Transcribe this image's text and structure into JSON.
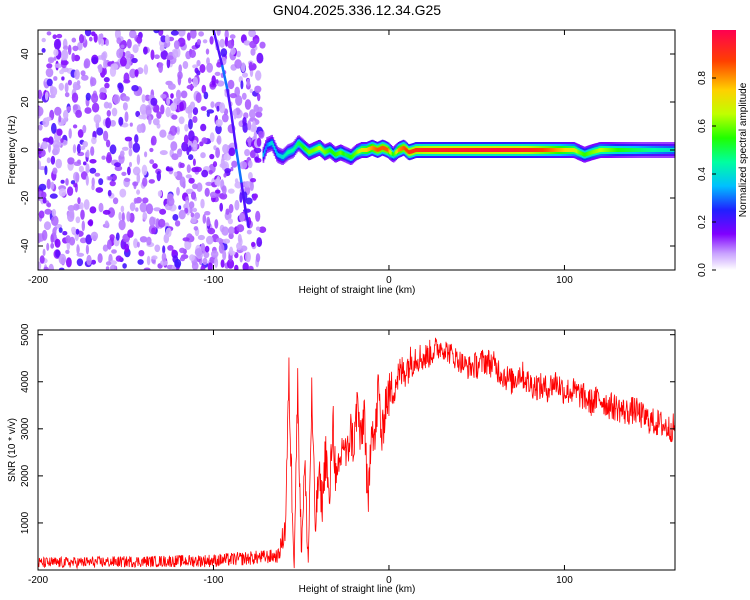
{
  "figure_title": "GN04.2025.336.12.34.G25",
  "chart_data": [
    {
      "type": "heatmap",
      "title": "GN04.2025.336.12.34.G25",
      "xlabel": "Height of straight line (km)",
      "ylabel": "Frequency (Hz)",
      "xlim": [
        -200,
        163
      ],
      "ylim": [
        -50,
        50
      ],
      "xticks": [
        -200,
        -100,
        0,
        100
      ],
      "yticks": [
        -40,
        -20,
        0,
        20,
        40
      ],
      "noise_region_x": [
        -200,
        -72
      ],
      "signal_trace": {
        "x": [
          -72,
          -70,
          -67,
          -64,
          -61,
          -58,
          -55,
          -52,
          -49,
          -46,
          -43,
          -40,
          -37,
          -34,
          -31,
          -28,
          -25,
          -22,
          -19,
          -16,
          -13,
          -10,
          -7,
          -4,
          -1,
          2,
          5,
          8,
          11,
          15,
          20,
          30,
          40,
          50,
          60,
          70,
          80,
          90,
          100,
          105,
          108,
          111,
          115,
          120,
          130,
          140,
          150,
          163
        ],
        "frequency": [
          -2,
          2,
          3,
          -2,
          -3,
          -1,
          0,
          3,
          1,
          -1,
          0,
          1,
          -1,
          0,
          -2,
          -1,
          -2,
          -3,
          -1,
          0,
          0,
          1,
          0,
          1,
          0,
          -2,
          0,
          1,
          -1,
          0,
          0,
          0,
          0,
          0,
          0,
          0,
          0,
          0,
          0,
          0,
          -1,
          -2,
          -1,
          0,
          0,
          0,
          0,
          0
        ],
        "amplitude": [
          0.35,
          0.3,
          0.4,
          0.35,
          0.4,
          0.45,
          0.45,
          0.5,
          0.55,
          0.6,
          0.6,
          0.65,
          0.6,
          0.55,
          0.55,
          0.6,
          0.5,
          0.55,
          0.6,
          0.7,
          0.75,
          0.8,
          0.85,
          0.85,
          0.85,
          0.5,
          0.8,
          0.85,
          0.9,
          0.9,
          0.92,
          0.93,
          0.94,
          0.95,
          0.96,
          0.95,
          0.92,
          0.85,
          0.75,
          0.7,
          0.6,
          0.55,
          0.6,
          0.65,
          0.55,
          0.5,
          0.45,
          0.4
        ]
      },
      "streak": {
        "x": [
          -100,
          -95,
          -92,
          -90,
          -87,
          -84,
          -82,
          -80
        ],
        "frequency": [
          50,
          35,
          25,
          16,
          0,
          -14,
          -24,
          -32
        ]
      },
      "colorbar": {
        "label": "Normalized spectral amplitude",
        "range": [
          0,
          1
        ],
        "ticks": [
          "0.0",
          "0.2",
          "0.4",
          "0.6",
          "0.8"
        ],
        "tick_values": [
          0,
          0.2,
          0.4,
          0.6,
          0.8
        ],
        "colormap": "rainbow (purple to red)"
      }
    },
    {
      "type": "line",
      "title": "",
      "xlabel": "Height of straight line (km)",
      "ylabel": "SNR (10 * v/v)",
      "xlim": [
        -200,
        163
      ],
      "ylim": [
        0,
        5100
      ],
      "xticks": [
        -200,
        -100,
        0,
        100
      ],
      "yticks": [
        1000,
        2000,
        3000,
        4000,
        5000
      ],
      "series": [
        {
          "name": "SNR",
          "color": "#ff0000",
          "x": [
            -200,
            -180,
            -160,
            -140,
            -120,
            -100,
            -80,
            -70,
            -63,
            -59,
            -57,
            -56,
            -54,
            -52,
            -50,
            -48,
            -46,
            -44,
            -42,
            -40,
            -38,
            -36,
            -34,
            -32,
            -30,
            -28,
            -26,
            -24,
            -22,
            -20,
            -18,
            -16,
            -14,
            -12,
            -10,
            -8,
            -6,
            -4,
            -2,
            0,
            5,
            10,
            15,
            20,
            25,
            30,
            35,
            40,
            45,
            50,
            55,
            60,
            65,
            70,
            75,
            80,
            85,
            90,
            95,
            100,
            105,
            110,
            115,
            120,
            125,
            130,
            135,
            140,
            145,
            150,
            155,
            160,
            163
          ],
          "values": [
            150,
            160,
            170,
            180,
            190,
            200,
            250,
            280,
            300,
            900,
            4150,
            2500,
            300,
            3900,
            500,
            2200,
            150,
            3700,
            900,
            2000,
            1400,
            2600,
            1300,
            3300,
            1700,
            2200,
            2800,
            2300,
            3000,
            2600,
            3600,
            2600,
            3500,
            1100,
            3300,
            2700,
            3900,
            2700,
            3600,
            3700,
            4100,
            4300,
            4550,
            4500,
            4650,
            4750,
            4600,
            4450,
            4300,
            4350,
            4450,
            4350,
            4150,
            4000,
            4200,
            3950,
            3900,
            3850,
            4000,
            3800,
            3800,
            3700,
            3550,
            3650,
            3500,
            3450,
            3350,
            3400,
            3250,
            3150,
            3100,
            3000,
            3050
          ],
          "noise_amplitude": [
            120,
            120,
            120,
            120,
            130,
            140,
            150,
            150,
            150,
            350,
            400,
            600,
            400,
            500,
            400,
            500,
            300,
            500,
            400,
            500,
            400,
            600,
            400,
            600,
            500,
            500,
            500,
            500,
            500,
            500,
            500,
            600,
            500,
            600,
            500,
            500,
            600,
            500,
            500,
            500,
            400,
            400,
            350,
            300,
            300,
            250,
            250,
            250,
            250,
            300,
            300,
            300,
            300,
            300,
            300,
            300,
            300,
            300,
            300,
            300,
            300,
            300,
            300,
            300,
            300,
            300,
            300,
            300,
            300,
            300,
            300,
            300,
            300
          ]
        }
      ]
    }
  ]
}
